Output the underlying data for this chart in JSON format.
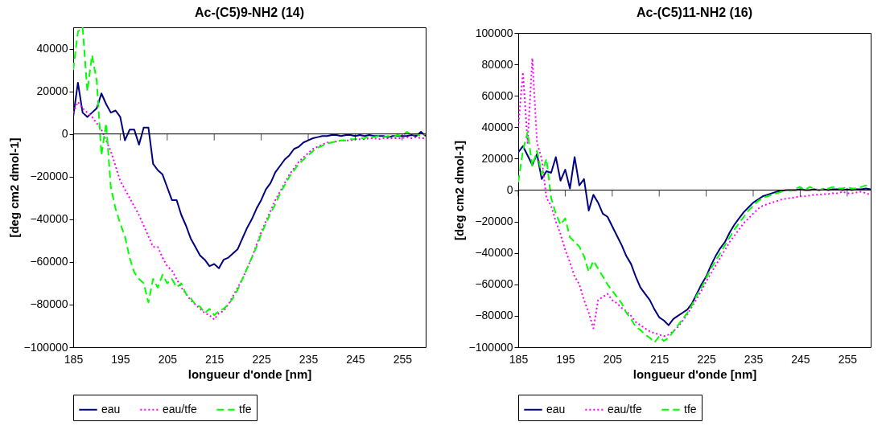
{
  "chart_data": [
    {
      "type": "line",
      "title": "Ac-(C5)9-NH2 (14)",
      "xlabel": "longueur d'onde [nm]",
      "ylabel": "[deg cm2 dmol-1]",
      "xlim": [
        185,
        260
      ],
      "xticks": [
        185,
        195,
        205,
        215,
        225,
        235,
        245,
        255
      ],
      "ylim": [
        -100000,
        50000
      ],
      "yticks": [
        -100000,
        -80000,
        -60000,
        -40000,
        -20000,
        0,
        20000,
        40000
      ],
      "legend": "bottom",
      "ref_lines": [
        {
          "axis": "y",
          "value": 0,
          "color": "#000000"
        }
      ],
      "x": [
        185,
        186,
        187,
        188,
        189,
        190,
        191,
        192,
        193,
        194,
        195,
        196,
        197,
        198,
        199,
        200,
        201,
        202,
        203,
        204,
        205,
        206,
        207,
        208,
        209,
        210,
        211,
        212,
        213,
        214,
        215,
        216,
        217,
        218,
        219,
        220,
        221,
        222,
        223,
        224,
        225,
        226,
        227,
        228,
        229,
        230,
        231,
        232,
        233,
        234,
        235,
        236,
        237,
        238,
        239,
        240,
        241,
        242,
        243,
        244,
        245,
        246,
        247,
        248,
        249,
        250,
        251,
        252,
        253,
        254,
        255,
        256,
        257,
        258,
        259,
        260
      ],
      "series": [
        {
          "name": "eau",
          "color": "#000080",
          "line_style": "solid",
          "values": [
            8000,
            24000,
            10000,
            8000,
            10000,
            12000,
            19000,
            14000,
            10000,
            11000,
            8000,
            -3000,
            2000,
            2000,
            -5000,
            3000,
            3000,
            -14000,
            -17000,
            -19000,
            -25000,
            -31000,
            -31000,
            -38000,
            -43000,
            -49000,
            -53000,
            -57000,
            -59000,
            -62000,
            -61000,
            -63000,
            -59000,
            -58000,
            -56000,
            -54000,
            -49000,
            -44000,
            -40000,
            -35000,
            -31000,
            -26000,
            -23000,
            -18000,
            -15000,
            -12000,
            -10000,
            -7000,
            -6000,
            -4000,
            -3000,
            -2000,
            -1500,
            -1000,
            -1000,
            -500,
            -500,
            -1000,
            -500,
            -500,
            -1000,
            -500,
            -1000,
            -500,
            -1000,
            -1000,
            -1000,
            -1500,
            -1000,
            -1000,
            -1000,
            -1000,
            -500,
            -1000,
            1000,
            -1000
          ]
        },
        {
          "name": "eau/tfe",
          "color": "#ff00ff",
          "line_style": "dotted",
          "values": [
            10000,
            15000,
            12000,
            10000,
            8000,
            5000,
            2000,
            -3000,
            -8000,
            -15000,
            -22000,
            -26000,
            -30000,
            -34000,
            -38000,
            -43000,
            -48000,
            -53000,
            -53000,
            -58000,
            -62000,
            -64000,
            -68000,
            -72000,
            -75000,
            -78000,
            -80000,
            -82000,
            -84000,
            -85000,
            -87000,
            -84000,
            -83000,
            -80000,
            -76000,
            -72000,
            -68000,
            -63000,
            -58000,
            -52000,
            -46000,
            -41000,
            -36000,
            -31000,
            -27000,
            -23000,
            -19000,
            -16000,
            -13000,
            -11000,
            -9000,
            -7000,
            -6000,
            -5000,
            -4000,
            -4000,
            -3500,
            -3000,
            -3000,
            -3000,
            -2500,
            -2500,
            -2500,
            -2000,
            -2000,
            -2500,
            -2000,
            -2000,
            -2000,
            -2000,
            -2000,
            -1500,
            -2000,
            -1500,
            -2000,
            -2000
          ]
        },
        {
          "name": "tfe",
          "color": "#00ff00",
          "line_style": "dashed",
          "values": [
            30000,
            48000,
            50000,
            20000,
            37000,
            25000,
            -10000,
            5000,
            -25000,
            -35000,
            -42000,
            -48000,
            -58000,
            -65000,
            -68000,
            -70000,
            -79000,
            -68000,
            -72000,
            -66000,
            -70000,
            -68000,
            -72000,
            -70000,
            -75000,
            -77000,
            -80000,
            -81000,
            -84000,
            -82000,
            -85000,
            -83000,
            -82000,
            -80000,
            -77000,
            -73000,
            -68000,
            -63000,
            -58000,
            -53000,
            -47000,
            -42000,
            -37000,
            -33000,
            -28000,
            -24000,
            -20000,
            -17000,
            -14000,
            -12000,
            -10000,
            -8000,
            -6500,
            -5500,
            -4500,
            -4000,
            -3500,
            -3000,
            -3000,
            -2500,
            -2500,
            -2000,
            -2000,
            -1000,
            -1500,
            -1000,
            -1500,
            -1000,
            -1500,
            -500,
            -1000,
            1000,
            -500,
            0,
            -1000,
            0
          ]
        }
      ]
    },
    {
      "type": "line",
      "title": "Ac-(C5)11-NH2 (16)",
      "xlabel": "longueur d'onde [nm]",
      "ylabel": "[deg cm2 dmol-1]",
      "xlim": [
        185,
        260
      ],
      "xticks": [
        185,
        195,
        205,
        215,
        225,
        235,
        245,
        255
      ],
      "ylim": [
        -100000,
        100000
      ],
      "yticks": [
        -100000,
        -80000,
        -60000,
        -40000,
        -20000,
        0,
        20000,
        40000,
        60000,
        80000,
        100000
      ],
      "legend": "bottom",
      "ref_lines": [
        {
          "axis": "y",
          "value": 0,
          "color": "#000000"
        }
      ],
      "x": [
        185,
        186,
        187,
        188,
        189,
        190,
        191,
        192,
        193,
        194,
        195,
        196,
        197,
        198,
        199,
        200,
        201,
        202,
        203,
        204,
        205,
        206,
        207,
        208,
        209,
        210,
        211,
        212,
        213,
        214,
        215,
        216,
        217,
        218,
        219,
        220,
        221,
        222,
        223,
        224,
        225,
        226,
        227,
        228,
        229,
        230,
        231,
        232,
        233,
        234,
        235,
        236,
        237,
        238,
        239,
        240,
        241,
        242,
        243,
        244,
        245,
        246,
        247,
        248,
        249,
        250,
        251,
        252,
        253,
        254,
        255,
        256,
        257,
        258,
        259,
        260
      ],
      "series": [
        {
          "name": "eau",
          "color": "#000080",
          "line_style": "solid",
          "values": [
            24000,
            28000,
            22000,
            16000,
            23000,
            7000,
            12000,
            11000,
            21000,
            6000,
            13000,
            1000,
            21000,
            3000,
            7000,
            -13000,
            -3000,
            -8000,
            -15000,
            -17000,
            -23000,
            -29000,
            -35000,
            -42000,
            -47000,
            -55000,
            -62000,
            -66000,
            -70000,
            -76000,
            -81000,
            -83000,
            -86000,
            -82000,
            -80000,
            -78000,
            -76000,
            -72000,
            -66000,
            -60000,
            -55000,
            -48000,
            -42000,
            -37000,
            -33000,
            -27000,
            -22000,
            -18000,
            -14000,
            -11000,
            -8000,
            -6000,
            -4000,
            -3000,
            -2000,
            -1000,
            -500,
            0,
            0,
            0,
            500,
            0,
            0,
            500,
            0,
            500,
            0,
            500,
            500,
            0,
            500,
            0,
            500,
            500,
            1000,
            500
          ]
        },
        {
          "name": "eau/tfe",
          "color": "#ff00ff",
          "line_style": "dotted",
          "values": [
            40000,
            75000,
            30000,
            84000,
            30000,
            20000,
            -5000,
            -10000,
            -20000,
            -28000,
            -38000,
            -46000,
            -55000,
            -60000,
            -70000,
            -78000,
            -88000,
            -70000,
            -68000,
            -66000,
            -70000,
            -72000,
            -75000,
            -77000,
            -80000,
            -84000,
            -86000,
            -88000,
            -90000,
            -91000,
            -92000,
            -93000,
            -92000,
            -90000,
            -87000,
            -83000,
            -79000,
            -74000,
            -69000,
            -64000,
            -58000,
            -53000,
            -48000,
            -43000,
            -38000,
            -33000,
            -29000,
            -25000,
            -21000,
            -18000,
            -15000,
            -12000,
            -10000,
            -9000,
            -8000,
            -7000,
            -6000,
            -5500,
            -5000,
            -4500,
            -4000,
            -4000,
            -3500,
            -3000,
            -3000,
            -2500,
            -2500,
            -2000,
            -2000,
            -1000,
            -2000,
            -2000,
            -1500,
            -1000,
            -2000,
            -3000
          ]
        },
        {
          "name": "tfe",
          "color": "#00ff00",
          "line_style": "dashed",
          "values": [
            5000,
            25000,
            37000,
            15000,
            25000,
            10000,
            20000,
            -5000,
            -15000,
            -22000,
            -18000,
            -30000,
            -33000,
            -36000,
            -42000,
            -52000,
            -45000,
            -50000,
            -55000,
            -60000,
            -64000,
            -68000,
            -72000,
            -78000,
            -82000,
            -87000,
            -89000,
            -92000,
            -94000,
            -97000,
            -93000,
            -96000,
            -94000,
            -90000,
            -86000,
            -82000,
            -78000,
            -73000,
            -67000,
            -62000,
            -56000,
            -50000,
            -45000,
            -40000,
            -35000,
            -30000,
            -25000,
            -21000,
            -17000,
            -13000,
            -10000,
            -7000,
            -5000,
            -4000,
            -3000,
            -2000,
            -1000,
            0,
            -500,
            1000,
            2000,
            0,
            2000,
            1000,
            0,
            1000,
            1000,
            2000,
            1000,
            1000,
            2000,
            1000,
            1000,
            2000,
            3000,
            1000
          ]
        }
      ]
    }
  ]
}
